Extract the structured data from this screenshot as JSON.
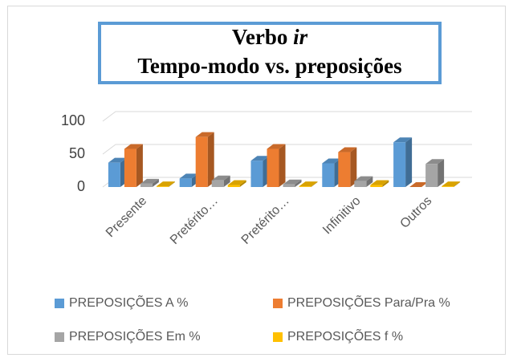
{
  "chart_data": {
    "type": "bar3d",
    "title": [
      "Verbo",
      "ir",
      "Tempo-modo vs. preposições"
    ],
    "categories": [
      "Presente",
      "Pretérito…",
      "Pretérito…",
      "Infinitivo",
      "Outros"
    ],
    "series": [
      {
        "name": "PREPOSIÇÕES A %",
        "color": "#5b9bd5",
        "values": [
          37,
          13,
          40,
          36,
          68
        ]
      },
      {
        "name": "PREPOSIÇÕES Para/Pra %",
        "color": "#ed7d31",
        "values": [
          58,
          76,
          58,
          53,
          0
        ]
      },
      {
        "name": "PREPOSIÇÕES Em %",
        "color": "#a5a5a5",
        "values": [
          5,
          10,
          4,
          9,
          35
        ]
      },
      {
        "name": "PREPOSIÇÕES f %",
        "color": "#ffc000",
        "values": [
          1,
          3,
          1,
          3,
          1
        ]
      }
    ],
    "ylim": [
      0,
      100
    ],
    "yticks": [
      0,
      50,
      100
    ],
    "grid": true,
    "legend": "bottom"
  }
}
